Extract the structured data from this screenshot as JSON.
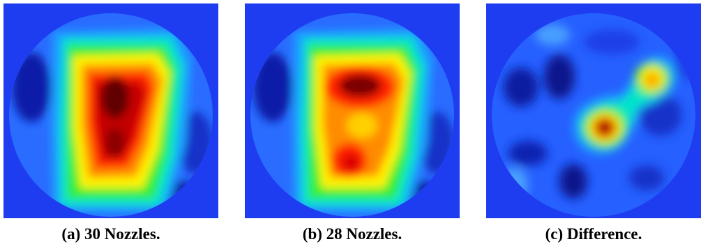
{
  "colors": {
    "background": "#1e3cf0",
    "colormap": [
      "#0a0f8c",
      "#1e3cf0",
      "#1fa0ff",
      "#00e6c8",
      "#33ee33",
      "#fff200",
      "#ff8c00",
      "#ff2000",
      "#a00000",
      "#460000"
    ]
  },
  "panels": [
    {
      "id": "a",
      "caption": "(a) 30 Nozzles."
    },
    {
      "id": "b",
      "caption": "(b) 28 Nozzles."
    },
    {
      "id": "c",
      "caption": "(c) Difference."
    }
  ]
}
